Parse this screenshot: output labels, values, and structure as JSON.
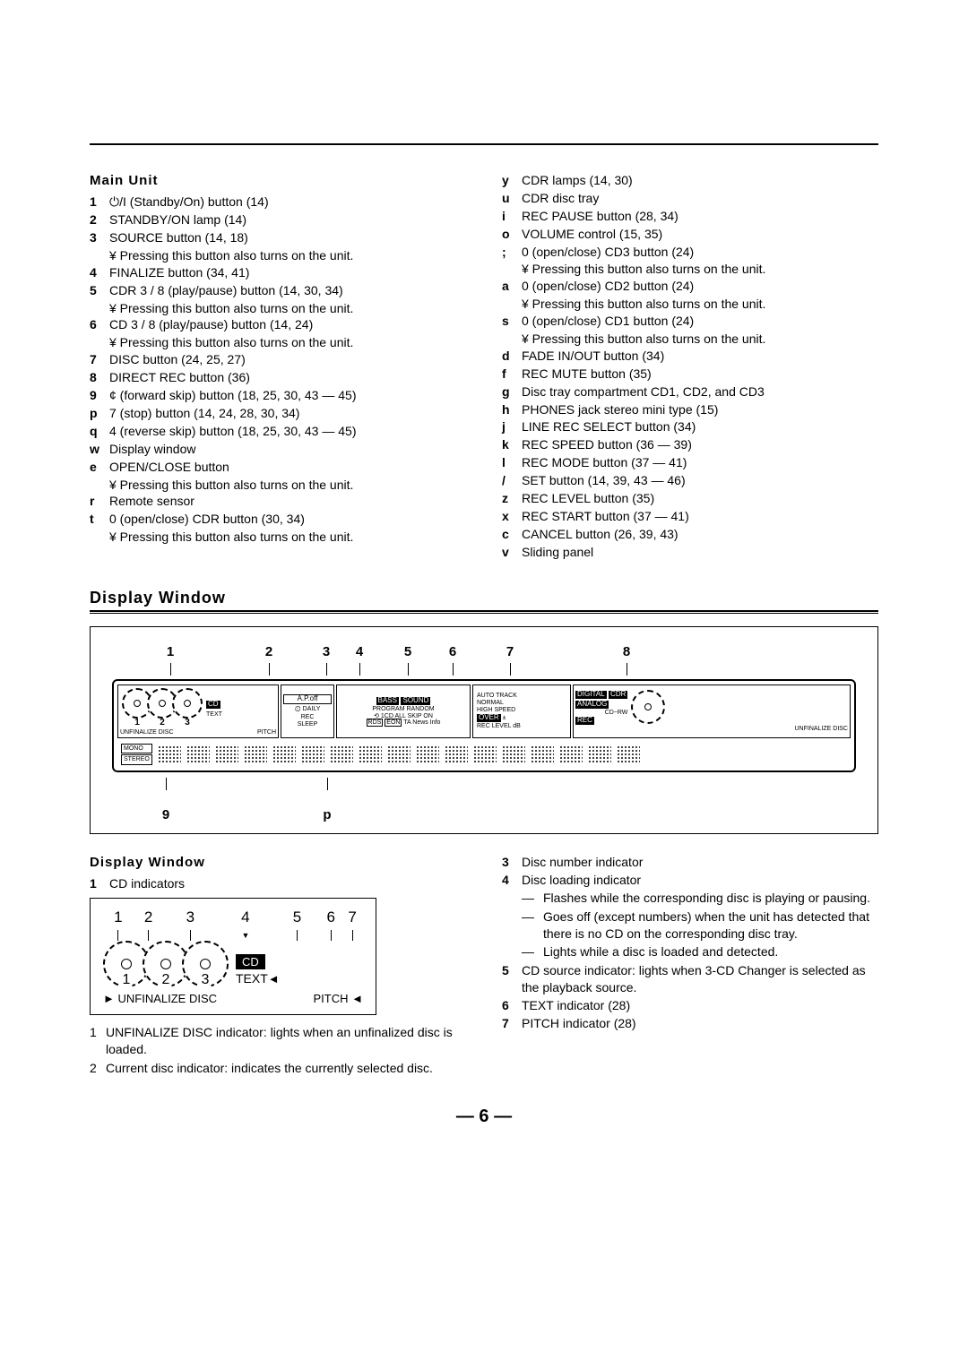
{
  "mainUnit": {
    "title": "Main Unit",
    "left": [
      {
        "k": "1",
        "v": "⏻/I (Standby/On) button (14)"
      },
      {
        "k": "2",
        "v": "STANDBY/ON lamp (14)"
      },
      {
        "k": "3",
        "v": "SOURCE button (14, 18)",
        "note": "¥  Pressing this button also turns on the unit."
      },
      {
        "k": "4",
        "v": "FINALIZE button (34, 41)"
      },
      {
        "k": "5",
        "v": "CDR 3 / 8 (play/pause) button (14, 30, 34)",
        "note": "¥  Pressing this button also turns on the unit."
      },
      {
        "k": "6",
        "v": "CD 3 / 8 (play/pause) button (14, 24)",
        "note": "¥  Pressing this button also turns on the unit."
      },
      {
        "k": "7",
        "v": "DISC button (24, 25, 27)"
      },
      {
        "k": "8",
        "v": "DIRECT REC button (36)"
      },
      {
        "k": "9",
        "v": "¢   (forward skip) button (18, 25, 30, 43 — 45)"
      },
      {
        "k": "p",
        "v": "7 (stop) button (14, 24, 28, 30, 34)"
      },
      {
        "k": "q",
        "v": "4   (reverse skip) button (18, 25, 30, 43 — 45)"
      },
      {
        "k": "w",
        "v": "Display window"
      },
      {
        "k": "e",
        "v": "OPEN/CLOSE button",
        "note": "¥  Pressing this button also turns on the unit."
      },
      {
        "k": "r",
        "v": "Remote sensor"
      },
      {
        "k": "t",
        "v": "0 (open/close) CDR button (30, 34)",
        "note": "¥  Pressing this button also turns on the unit."
      }
    ],
    "right": [
      {
        "k": "y",
        "v": "CDR lamps (14, 30)"
      },
      {
        "k": "u",
        "v": "CDR disc tray"
      },
      {
        "k": "i",
        "v": "REC PAUSE button (28, 34)"
      },
      {
        "k": "o",
        "v": "VOLUME control (15, 35)"
      },
      {
        "k": ";",
        "v": "0 (open/close) CD3 button (24)",
        "note": "¥  Pressing this button also turns on the unit."
      },
      {
        "k": "a",
        "v": "0 (open/close) CD2 button (24)",
        "note": "¥  Pressing this button also turns on the unit."
      },
      {
        "k": "s",
        "v": "0 (open/close) CD1 button (24)",
        "note": "¥  Pressing this button also turns on the unit."
      },
      {
        "k": "d",
        "v": "FADE IN/OUT button (34)"
      },
      {
        "k": "f",
        "v": "REC MUTE button (35)"
      },
      {
        "k": "g",
        "v": "Disc tray compartment CD1, CD2, and CD3"
      },
      {
        "k": "h",
        "v": "PHONES jack stereo mini type (15)"
      },
      {
        "k": "j",
        "v": "LINE REC SELECT button (34)"
      },
      {
        "k": "k",
        "v": "REC SPEED button (36 — 39)"
      },
      {
        "k": "l",
        "v": "REC MODE button (37 — 41)"
      },
      {
        "k": "/",
        "v": "SET button (14, 39, 43 — 46)"
      },
      {
        "k": "z",
        "v": "REC LEVEL button (35)"
      },
      {
        "k": "x",
        "v": "REC START button (37 — 41)"
      },
      {
        "k": "c",
        "v": "CANCEL button (26, 39, 43)"
      },
      {
        "k": "v",
        "v": "Sliding panel"
      }
    ]
  },
  "displayWindowHeading": "Display Window",
  "topDiagram": {
    "topCallouts": [
      "1",
      "2",
      "3",
      "4",
      "5",
      "6",
      "7",
      "8"
    ],
    "topWidths": [
      130,
      90,
      38,
      36,
      72,
      28,
      100,
      160
    ],
    "bottomCallouts": [
      "9",
      "p"
    ],
    "bottomPositions": [
      120,
      360
    ],
    "lcd": {
      "discs": [
        "1",
        "2",
        "3"
      ],
      "leftLabels": {
        "cd": "CD",
        "text": "TEXT",
        "unfinalize": "UNFINALIZE DISC",
        "pitch": "PITCH"
      },
      "seg2": {
        "apoff": "A.P.off",
        "daily": "DAILY",
        "rec": "REC",
        "sleep": "SLEEP",
        "clock": "⏲"
      },
      "seg3": {
        "bass": "BASS",
        "sound": "SOUND",
        "program": "PROGRAM",
        "random": "RANDOM",
        "repeat": "⟲",
        "onecd": "1CD",
        "all": "ALL",
        "skipon": "SKIP ON",
        "rds": "RDS",
        "eon": "EON",
        "ta": "TA",
        "news": "News",
        "info": "Info"
      },
      "seg4": {
        "autotrack": "AUTO TRACK",
        "normal": "NORMAL",
        "highspeed": "HIGH SPEED",
        "over": "OVER",
        "reclevel": "REC LEVEL",
        "db": "dB"
      },
      "seg5": {
        "digital": "DIGITAL",
        "analog": "ANALOG",
        "rec": "REC",
        "cdr": "CDR",
        "cdrw": "CD−RW",
        "unfinalize": "UNFINALIZE DISC"
      },
      "mono": "MONO",
      "stereo": "STEREO"
    }
  },
  "displayWindowSection": {
    "title": "Display Window",
    "item1": {
      "k": "1",
      "v": "CD indicators"
    },
    "smallDiagram": {
      "nums": [
        "1",
        "2",
        "3",
        "4",
        "5",
        "6",
        "7"
      ],
      "widths": [
        34,
        34,
        60,
        64,
        52,
        24,
        24
      ],
      "discN": [
        "1",
        "2",
        "3"
      ],
      "cd": "CD",
      "text": "TEXT",
      "unf": "UNFINALIZE DISC",
      "pitch": "PITCH"
    },
    "leftSub": [
      {
        "k": "1",
        "v": "UNFINALIZE DISC indicator: lights when an unfinalized disc is loaded."
      },
      {
        "k": "2",
        "v": "Current disc indicator: indicates the currently selected disc."
      }
    ],
    "right": [
      {
        "k": "3",
        "v": "Disc number indicator"
      },
      {
        "k": "4",
        "v": "Disc loading indicator",
        "dash": [
          "Flashes while the corresponding disc is playing or pausing.",
          "Goes off (except numbers) when the unit has detected that there is no CD on the corresponding disc tray.",
          "Lights while a disc is loaded and detected."
        ]
      },
      {
        "k": "5",
        "v": "CD source indicator: lights when 3-CD Changer is selected as the playback source."
      },
      {
        "k": "6",
        "v": "TEXT indicator (28)"
      },
      {
        "k": "7",
        "v": "PITCH indicator (28)"
      }
    ]
  },
  "pageNumber": "— 6 —"
}
